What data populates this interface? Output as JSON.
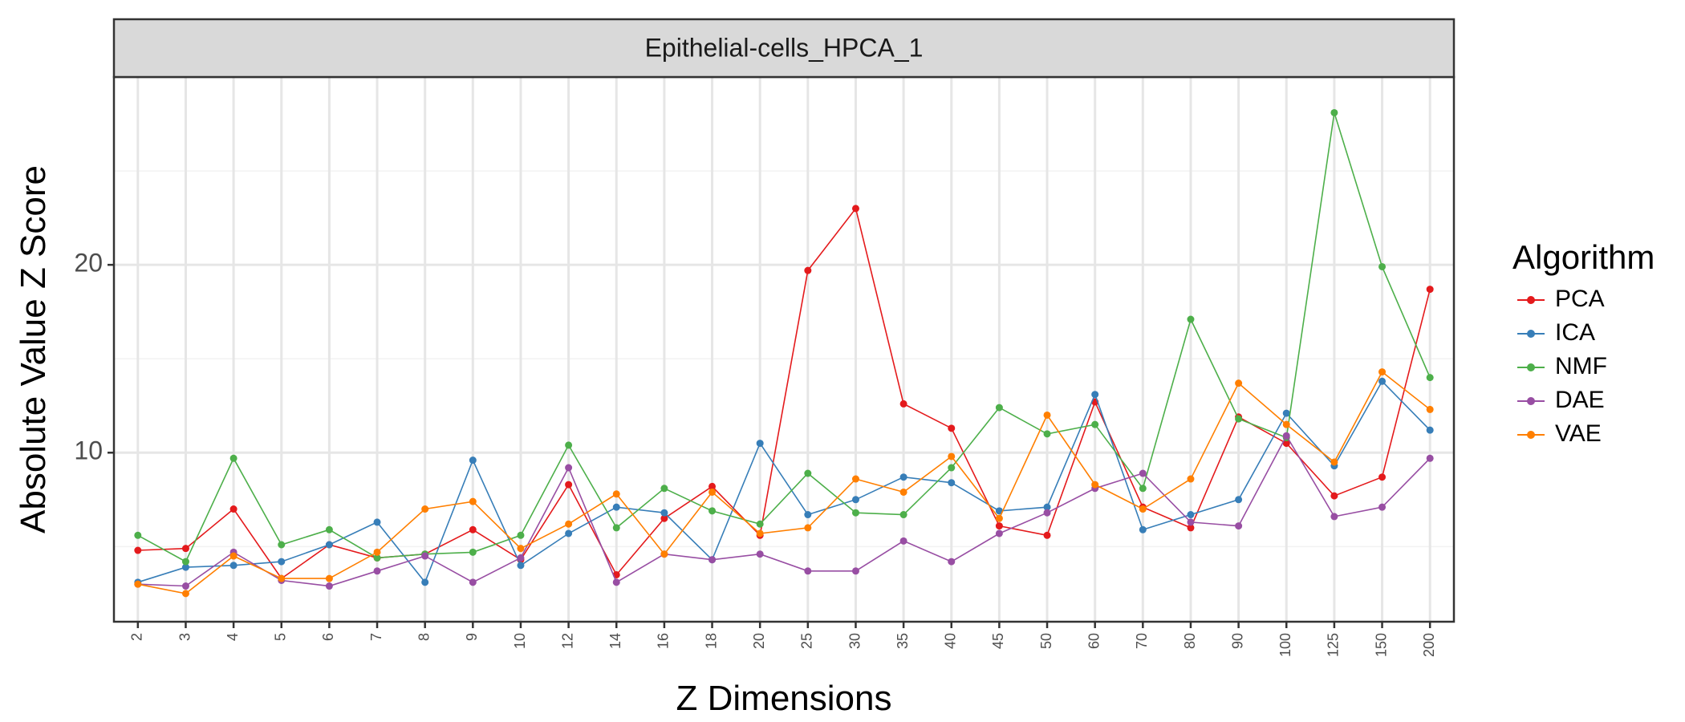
{
  "chart_data": {
    "type": "line",
    "facet_title": "Epithelial-cells_HPCA_1",
    "xlabel": "Z Dimensions",
    "ylabel": "Absolute Value Z Score",
    "categories": [
      "2",
      "3",
      "4",
      "5",
      "6",
      "7",
      "8",
      "9",
      "10",
      "12",
      "14",
      "16",
      "18",
      "20",
      "25",
      "30",
      "35",
      "40",
      "45",
      "50",
      "60",
      "70",
      "80",
      "90",
      "100",
      "125",
      "150",
      "200"
    ],
    "y_ticks": [
      10,
      20
    ],
    "ylim": [
      1,
      30
    ],
    "grid": true,
    "legend": {
      "title": "Algorithm",
      "position": "right"
    },
    "series": [
      {
        "name": "PCA",
        "color": "#E41A1C",
        "values": [
          4.8,
          4.9,
          7.0,
          3.3,
          5.1,
          4.4,
          4.6,
          5.9,
          4.3,
          8.3,
          3.5,
          6.5,
          8.2,
          5.6,
          19.7,
          23.0,
          12.6,
          11.3,
          6.1,
          5.6,
          12.7,
          7.1,
          6.0,
          11.9,
          10.5,
          7.7,
          8.7,
          18.7
        ]
      },
      {
        "name": "ICA",
        "color": "#377EB8",
        "values": [
          3.1,
          3.9,
          4.0,
          4.2,
          5.1,
          6.3,
          3.1,
          9.6,
          4.0,
          5.7,
          7.1,
          6.8,
          4.3,
          10.5,
          6.7,
          7.5,
          8.7,
          8.4,
          6.9,
          7.1,
          13.1,
          5.9,
          6.7,
          7.5,
          12.1,
          9.3,
          13.8,
          11.2
        ]
      },
      {
        "name": "NMF",
        "color": "#4DAF4A",
        "values": [
          5.6,
          4.2,
          9.7,
          5.1,
          5.9,
          4.4,
          4.6,
          4.7,
          5.6,
          10.4,
          6.0,
          8.1,
          6.9,
          6.2,
          8.9,
          6.8,
          6.7,
          9.2,
          12.4,
          11.0,
          11.5,
          8.1,
          17.1,
          11.8,
          10.8,
          28.1,
          19.9,
          14.0
        ]
      },
      {
        "name": "DAE",
        "color": "#984EA3",
        "values": [
          3.0,
          2.9,
          4.7,
          3.2,
          2.9,
          3.7,
          4.5,
          3.1,
          4.4,
          9.2,
          3.1,
          4.6,
          4.3,
          4.6,
          3.7,
          3.7,
          5.3,
          4.2,
          5.7,
          6.8,
          8.1,
          8.9,
          6.3,
          6.1,
          10.9,
          6.6,
          7.1,
          9.7
        ]
      },
      {
        "name": "VAE",
        "color": "#FF7F00",
        "values": [
          3.0,
          2.5,
          4.5,
          3.3,
          3.3,
          4.7,
          7.0,
          7.4,
          4.9,
          6.2,
          7.8,
          4.6,
          7.9,
          5.7,
          6.0,
          8.6,
          7.9,
          9.8,
          6.5,
          12.0,
          8.3,
          7.0,
          8.6,
          13.7,
          11.5,
          9.5,
          14.3,
          12.3
        ]
      }
    ]
  }
}
